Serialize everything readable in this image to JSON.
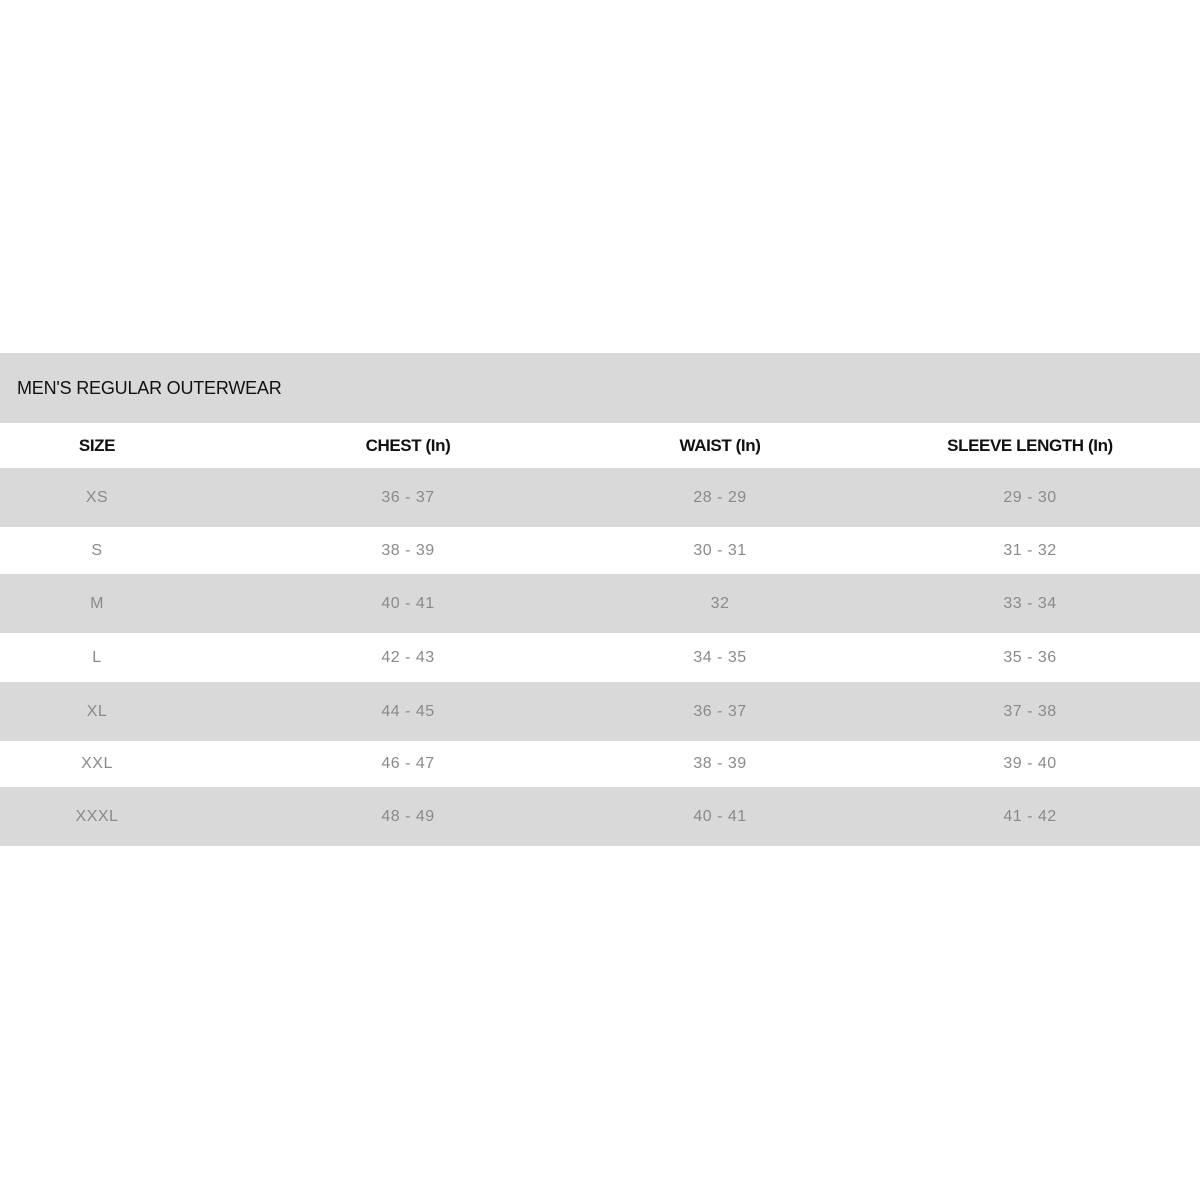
{
  "title": "MEN'S REGULAR OUTERWEAR",
  "columns": [
    "SIZE",
    "CHEST (In)",
    "WAIST (In)",
    "SLEEVE LENGTH (In)"
  ],
  "rows": [
    [
      "XS",
      "36 - 37",
      "28 - 29",
      "29 - 30"
    ],
    [
      "S",
      "38 - 39",
      "30 - 31",
      "31 - 32"
    ],
    [
      "M",
      "40 - 41",
      "32",
      "33 - 34"
    ],
    [
      "L",
      "42 - 43",
      "34 - 35",
      "35 - 36"
    ],
    [
      "XL",
      "44 - 45",
      "36 - 37",
      "37 - 38"
    ],
    [
      "XXL",
      "46 - 47",
      "38 - 39",
      "39 - 40"
    ],
    [
      "XXXL",
      "48 - 49",
      "40 - 41",
      "41 - 42"
    ]
  ],
  "colors": {
    "band": "#d9d9d9",
    "value_text": "#8a8a8a",
    "header_text": "#111111"
  }
}
